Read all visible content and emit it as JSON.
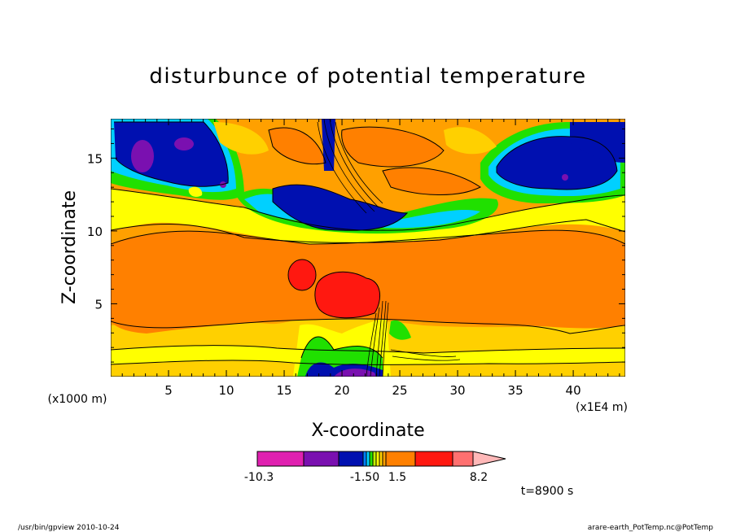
{
  "chart_data": {
    "type": "heatmap",
    "title": "disturbunce of potential temperature",
    "xlabel": "X-coordinate",
    "ylabel": "Z-coordinate",
    "x_unit": "(x1E4 m)",
    "y_unit": "(x1000 m)",
    "xlim": [
      0,
      44.5
    ],
    "ylim": [
      0,
      17.7
    ],
    "x_ticks": [
      5,
      10,
      15,
      20,
      25,
      30,
      35,
      40
    ],
    "y_ticks": [
      5,
      10,
      15
    ],
    "colorbar": {
      "colors": [
        "#e020b0",
        "#7a10b0",
        "#0010b0",
        "#0080ff",
        "#00d0ff",
        "#20e000",
        "#c0f000",
        "#ffff00",
        "#ffd000",
        "#ffa000",
        "#ff8000",
        "#ff1810",
        "#ff7070",
        "#ffb8b8"
      ],
      "labels": [
        "-10.3",
        "-1.50",
        "1.5",
        "8.2"
      ]
    },
    "time_label": "t=8900 s"
  },
  "footer": {
    "left": "/usr/bin/gpview   2010-10-24",
    "right": "arare-earth_PotTemp.nc@PotTemp"
  }
}
